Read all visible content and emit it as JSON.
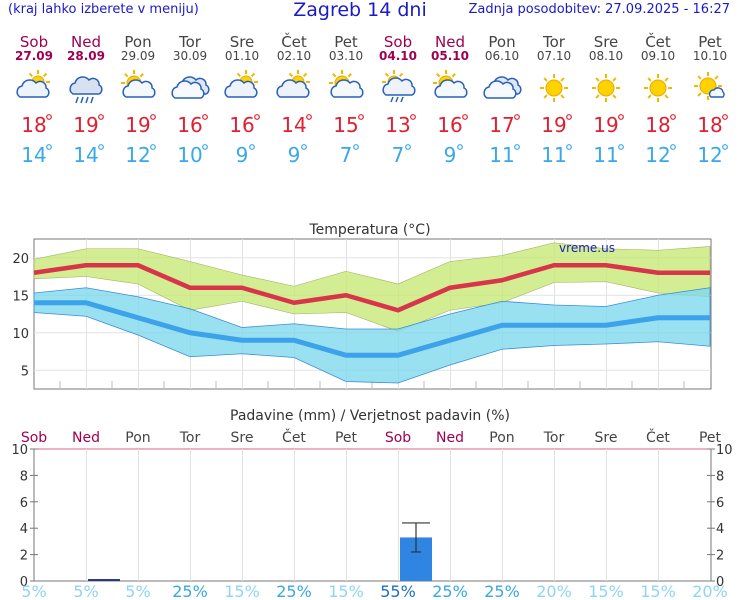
{
  "header": {
    "note": "(kraj lahko izberete v meniju)",
    "title": "Zagreb 14 dni",
    "updated": "Zadnja posodobitev: 27.09.2025 - 16:27"
  },
  "colors": {
    "weekend": "#a0004f",
    "weekday": "#444444",
    "tmax_text": "#e02030",
    "tmin_text": "#38a8e8",
    "tmax_line": "#d8344a",
    "tmin_line": "#3ca2ea",
    "tmax_band": "#c8e878",
    "tmin_band": "#80d8ee",
    "precip_bar": "#2e86e2",
    "prob_low": "#8fd4f2",
    "prob_mid": "#38a8e0",
    "prob_high": "#1a6fcc"
  },
  "days": [
    {
      "name": "Sob",
      "date": "27.09",
      "weekend": true,
      "icon": "partly-cloudy-icon",
      "tmax": "18",
      "tmin": "14",
      "prob": "5%",
      "prob_level": "low"
    },
    {
      "name": "Ned",
      "date": "28.09",
      "weekend": true,
      "icon": "rain-cloud-icon",
      "tmax": "19",
      "tmin": "14",
      "prob": "5%",
      "prob_level": "low"
    },
    {
      "name": "Pon",
      "date": "29.09",
      "weekend": false,
      "icon": "partly-sunny-icon",
      "tmax": "19",
      "tmin": "12",
      "prob": "5%",
      "prob_level": "low"
    },
    {
      "name": "Tor",
      "date": "30.09",
      "weekend": false,
      "icon": "cloudy-icon",
      "tmax": "16",
      "tmin": "10",
      "prob": "25%",
      "prob_level": "mid"
    },
    {
      "name": "Sre",
      "date": "01.10",
      "weekend": false,
      "icon": "partly-cloudy-icon",
      "tmax": "16",
      "tmin": "9",
      "prob": "15%",
      "prob_level": "low"
    },
    {
      "name": "Čet",
      "date": "02.10",
      "weekend": false,
      "icon": "partly-cloudy-icon",
      "tmax": "14",
      "tmin": "9",
      "prob": "25%",
      "prob_level": "mid"
    },
    {
      "name": "Pet",
      "date": "03.10",
      "weekend": false,
      "icon": "partly-sunny-icon",
      "tmax": "15",
      "tmin": "7",
      "prob": "15%",
      "prob_level": "low"
    },
    {
      "name": "Sob",
      "date": "04.10",
      "weekend": true,
      "icon": "sun-shower-icon",
      "tmax": "13",
      "tmin": "7",
      "prob": "55%",
      "prob_level": "high"
    },
    {
      "name": "Ned",
      "date": "05.10",
      "weekend": true,
      "icon": "partly-sunny-icon",
      "tmax": "16",
      "tmin": "9",
      "prob": "25%",
      "prob_level": "mid"
    },
    {
      "name": "Pon",
      "date": "06.10",
      "weekend": false,
      "icon": "cloudy-icon",
      "tmax": "17",
      "tmin": "11",
      "prob": "25%",
      "prob_level": "mid"
    },
    {
      "name": "Tor",
      "date": "07.10",
      "weekend": false,
      "icon": "sun-icon",
      "tmax": "19",
      "tmin": "11",
      "prob": "20%",
      "prob_level": "low"
    },
    {
      "name": "Sre",
      "date": "08.10",
      "weekend": false,
      "icon": "sun-icon",
      "tmax": "19",
      "tmin": "11",
      "prob": "15%",
      "prob_level": "low"
    },
    {
      "name": "Čet",
      "date": "09.10",
      "weekend": false,
      "icon": "sun-icon",
      "tmax": "18",
      "tmin": "12",
      "prob": "15%",
      "prob_level": "low"
    },
    {
      "name": "Pet",
      "date": "10.10",
      "weekend": false,
      "icon": "mostly-sunny-icon",
      "tmax": "18",
      "tmin": "12",
      "prob": "20%",
      "prob_level": "low"
    }
  ],
  "chart_data": [
    {
      "type": "line",
      "title": "Temperatura (°C)",
      "watermark": "vreme.us",
      "ylim": [
        2.5,
        22.5
      ],
      "yticks": [
        5,
        10,
        15,
        20
      ],
      "grid": true,
      "series": [
        {
          "values": [
            18,
            19,
            19,
            16,
            16,
            14,
            15,
            13,
            16,
            17,
            19,
            19,
            18,
            18
          ]
        },
        {
          "values": [
            14,
            14,
            12,
            10,
            9,
            9,
            7,
            7,
            9,
            11,
            11,
            11,
            12,
            12
          ]
        }
      ],
      "bands": [
        {
          "lower": [
            17.2,
            17.5,
            16.5,
            13.0,
            14.2,
            12.5,
            12.7,
            10.2,
            13.0,
            14.0,
            16.7,
            16.8,
            15.3,
            14.8
          ],
          "upper": [
            19.8,
            21.2,
            21.2,
            19.5,
            17.7,
            16.2,
            18.2,
            16.5,
            19.5,
            20.3,
            22.0,
            21.2,
            21.0,
            21.5
          ]
        },
        {
          "lower": [
            12.7,
            12.2,
            9.7,
            6.8,
            7.2,
            6.7,
            3.5,
            3.3,
            5.7,
            7.8,
            8.3,
            8.5,
            8.8,
            8.2
          ],
          "upper": [
            15.3,
            16.0,
            14.8,
            13.2,
            10.7,
            11.2,
            10.5,
            10.5,
            12.5,
            14.2,
            13.7,
            13.5,
            15.0,
            16.0
          ]
        }
      ]
    },
    {
      "type": "bar",
      "title": "Padavine (mm) / Verjetnost padavin (%)",
      "categories": [
        "Sob",
        "Ned",
        "Pon",
        "Tor",
        "Sre",
        "Čet",
        "Pet",
        "Sob",
        "Ned",
        "Pon",
        "Tor",
        "Sre",
        "Čet",
        "Pet"
      ],
      "values": [
        0,
        0.05,
        0,
        0,
        0,
        0,
        0,
        3.3,
        0,
        0,
        0,
        0,
        0,
        0
      ],
      "error_high": [
        null,
        null,
        null,
        null,
        null,
        null,
        null,
        4.4,
        null,
        null,
        null,
        null,
        null,
        null
      ],
      "error_low": [
        null,
        null,
        null,
        null,
        null,
        null,
        null,
        2.2,
        null,
        null,
        null,
        null,
        null,
        null
      ],
      "ylim": [
        0,
        10
      ],
      "yticks": [
        0,
        2,
        4,
        6,
        8,
        10
      ],
      "probability": [
        "5%",
        "5%",
        "5%",
        "25%",
        "15%",
        "25%",
        "15%",
        "55%",
        "25%",
        "25%",
        "20%",
        "15%",
        "15%",
        "20%"
      ]
    }
  ]
}
